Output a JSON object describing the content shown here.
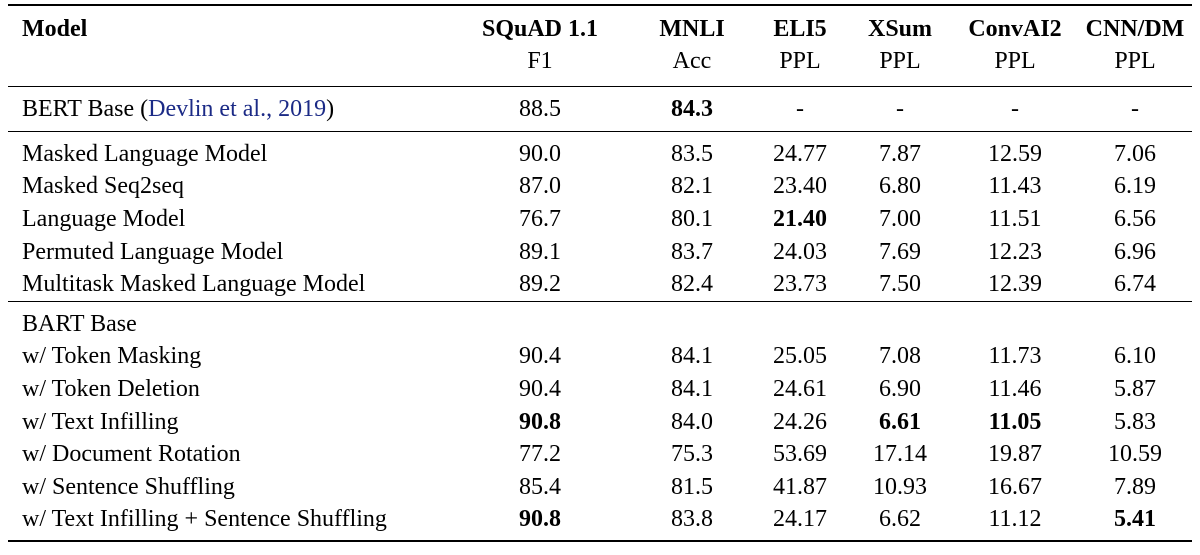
{
  "table": {
    "header_top": [
      "Model",
      "SQuAD 1.1",
      "MNLI",
      "ELI5",
      "XSum",
      "ConvAI2",
      "CNN/DM"
    ],
    "header_bottom": [
      "",
      "F1",
      "Acc",
      "PPL",
      "PPL",
      "PPL",
      "PPL"
    ],
    "baseline": {
      "label_prefix": "BERT Base (",
      "citation": "Devlin et al., 2019",
      "label_suffix": ")",
      "values": [
        "88.5",
        "84.3",
        "-",
        "-",
        "-",
        "-"
      ],
      "bold": [
        false,
        true,
        false,
        false,
        false,
        false
      ]
    },
    "objectives": [
      {
        "label": "Masked Language Model",
        "values": [
          "90.0",
          "83.5",
          "24.77",
          "7.87",
          "12.59",
          "7.06"
        ],
        "bold": [
          false,
          false,
          false,
          false,
          false,
          false
        ]
      },
      {
        "label": "Masked Seq2seq",
        "values": [
          "87.0",
          "82.1",
          "23.40",
          "6.80",
          "11.43",
          "6.19"
        ],
        "bold": [
          false,
          false,
          false,
          false,
          false,
          false
        ]
      },
      {
        "label": "Language Model",
        "values": [
          "76.7",
          "80.1",
          "21.40",
          "7.00",
          "11.51",
          "6.56"
        ],
        "bold": [
          false,
          false,
          true,
          false,
          false,
          false
        ]
      },
      {
        "label": "Permuted Language Model",
        "values": [
          "89.1",
          "83.7",
          "24.03",
          "7.69",
          "12.23",
          "6.96"
        ],
        "bold": [
          false,
          false,
          false,
          false,
          false,
          false
        ]
      },
      {
        "label": "Multitask Masked Language Model",
        "values": [
          "89.2",
          "82.4",
          "23.73",
          "7.50",
          "12.39",
          "6.74"
        ],
        "bold": [
          false,
          false,
          false,
          false,
          false,
          false
        ]
      }
    ],
    "bart_group_label": "BART Base",
    "bart": [
      {
        "label": "w/ Token Masking",
        "values": [
          "90.4",
          "84.1",
          "25.05",
          "7.08",
          "11.73",
          "6.10"
        ],
        "bold": [
          false,
          false,
          false,
          false,
          false,
          false
        ]
      },
      {
        "label": "w/ Token Deletion",
        "values": [
          "90.4",
          "84.1",
          "24.61",
          "6.90",
          "11.46",
          "5.87"
        ],
        "bold": [
          false,
          false,
          false,
          false,
          false,
          false
        ]
      },
      {
        "label": "w/ Text Infilling",
        "values": [
          "90.8",
          "84.0",
          "24.26",
          "6.61",
          "11.05",
          "5.83"
        ],
        "bold": [
          true,
          false,
          false,
          true,
          true,
          false
        ]
      },
      {
        "label": "w/ Document Rotation",
        "values": [
          "77.2",
          "75.3",
          "53.69",
          "17.14",
          "19.87",
          "10.59"
        ],
        "bold": [
          false,
          false,
          false,
          false,
          false,
          false
        ]
      },
      {
        "label": "w/ Sentence Shuffling",
        "values": [
          "85.4",
          "81.5",
          "41.87",
          "10.93",
          "16.67",
          "7.89"
        ],
        "bold": [
          false,
          false,
          false,
          false,
          false,
          false
        ]
      },
      {
        "label": "w/ Text Infilling + Sentence Shuffling",
        "values": [
          "90.8",
          "83.8",
          "24.17",
          "6.62",
          "11.12",
          "5.41"
        ],
        "bold": [
          true,
          false,
          false,
          false,
          false,
          true
        ]
      }
    ],
    "colors": {
      "citation": "#1b2a86",
      "text": "#000000"
    }
  }
}
